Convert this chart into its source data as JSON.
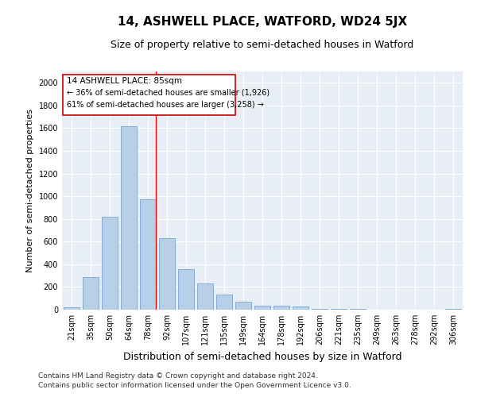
{
  "title": "14, ASHWELL PLACE, WATFORD, WD24 5JX",
  "subtitle": "Size of property relative to semi-detached houses in Watford",
  "xlabel": "Distribution of semi-detached houses by size in Watford",
  "ylabel": "Number of semi-detached properties",
  "categories": [
    "21sqm",
    "35sqm",
    "50sqm",
    "64sqm",
    "78sqm",
    "92sqm",
    "107sqm",
    "121sqm",
    "135sqm",
    "149sqm",
    "164sqm",
    "178sqm",
    "192sqm",
    "206sqm",
    "221sqm",
    "235sqm",
    "249sqm",
    "263sqm",
    "278sqm",
    "292sqm",
    "306sqm"
  ],
  "values": [
    20,
    290,
    820,
    1620,
    970,
    630,
    360,
    230,
    130,
    70,
    35,
    35,
    25,
    10,
    10,
    5,
    2,
    2,
    2,
    2,
    8
  ],
  "bar_color": "#b8cfe8",
  "bar_edgecolor": "#6699cc",
  "red_line_x": 4.425,
  "annotation_title": "14 ASHWELL PLACE: 85sqm",
  "annotation_line1": "← 36% of semi-detached houses are smaller (1,926)",
  "annotation_line2": "61% of semi-detached houses are larger (3,258) →",
  "box_edgecolor": "#cc0000",
  "footer_line1": "Contains HM Land Registry data © Crown copyright and database right 2024.",
  "footer_line2": "Contains public sector information licensed under the Open Government Licence v3.0.",
  "ylim": [
    0,
    2100
  ],
  "yticks": [
    0,
    200,
    400,
    600,
    800,
    1000,
    1200,
    1400,
    1600,
    1800,
    2000
  ],
  "background_color": "#e8eef5",
  "grid_color": "#ffffff",
  "title_fontsize": 11,
  "subtitle_fontsize": 9,
  "ylabel_fontsize": 8,
  "xlabel_fontsize": 9,
  "tick_fontsize": 7,
  "annotation_fontsize": 7.5,
  "footer_fontsize": 6.5
}
